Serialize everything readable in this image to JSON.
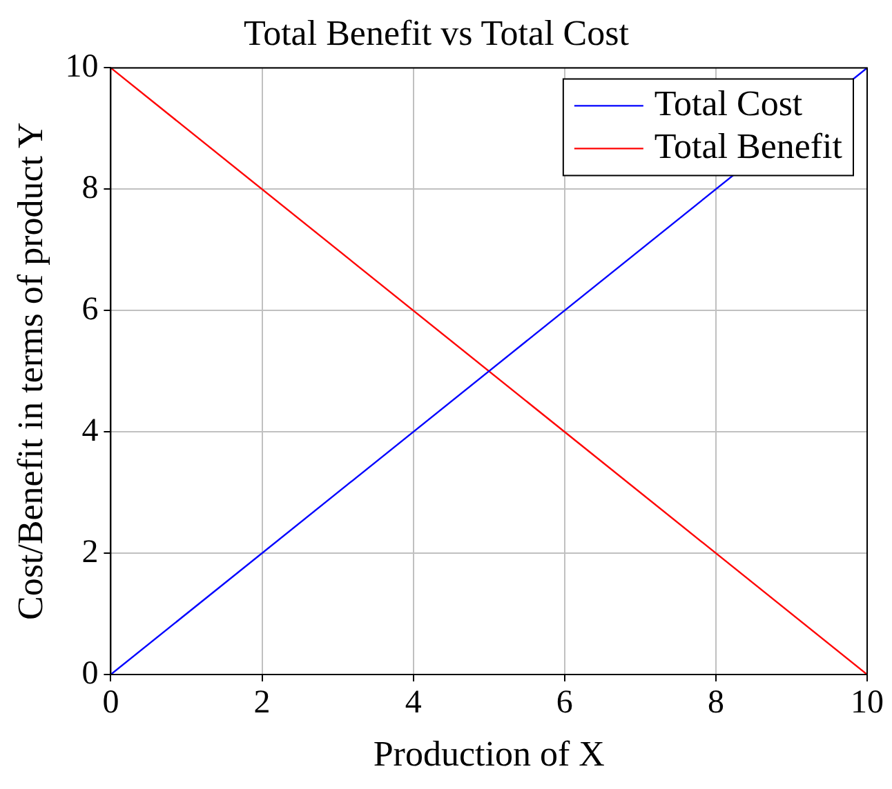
{
  "chart_data": {
    "type": "line",
    "title": "Total Benefit vs Total Cost",
    "xlabel": "Production of X",
    "ylabel": "Cost/Benefit in terms of product Y",
    "x": [
      0,
      10
    ],
    "series": [
      {
        "name": "Total Cost",
        "color": "#0000ff",
        "values": [
          0,
          10
        ]
      },
      {
        "name": "Total Benefit",
        "color": "#ff0000",
        "values": [
          10,
          0
        ]
      }
    ],
    "xlim": [
      0,
      10
    ],
    "xticks": [
      0,
      2,
      4,
      6,
      8,
      10
    ],
    "ylim": [
      0,
      10
    ],
    "yticks": [
      0,
      2,
      4,
      6,
      8,
      10
    ],
    "grid": true,
    "legend": "top right"
  }
}
